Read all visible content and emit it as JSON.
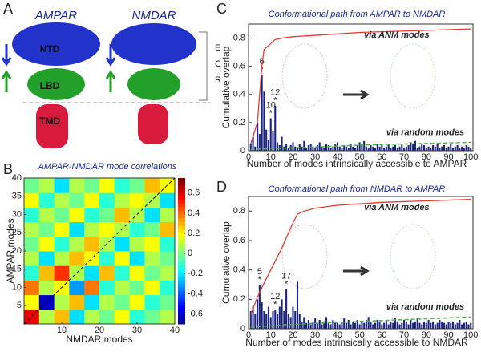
{
  "figure": {
    "panel_labels": [
      "A",
      "B",
      "C",
      "D"
    ],
    "proteins": [
      "AMPAR",
      "NMDAR"
    ],
    "domains": [
      "NTD",
      "LBD",
      "TMD"
    ],
    "ecr": [
      "E",
      "C",
      "R"
    ]
  },
  "chart_data": [
    {
      "type": "heatmap",
      "title": "AMPAR-NMDAR mode correlations",
      "xlabel": "NMDAR modes",
      "ylabel": "AMPAR modes",
      "xlim": [
        0,
        40
      ],
      "ylim": [
        0,
        40
      ],
      "xticks": [
        10,
        20,
        30,
        40
      ],
      "yticks": [
        5,
        10,
        15,
        20,
        25,
        30,
        35,
        40
      ],
      "clim": [
        -0.7,
        0.75
      ],
      "cticks": [
        0.6,
        0.4,
        0.2,
        0,
        -0.2,
        -0.4,
        -0.6
      ],
      "matrix": [
        [
          0.6,
          0.1,
          0.3,
          -0.2,
          0.1,
          0,
          0.2,
          -0.1,
          0,
          0.1
        ],
        [
          0.2,
          -0.6,
          0.1,
          0.3,
          -0.2,
          0.1,
          0,
          0.2,
          -0.1,
          0
        ],
        [
          0.4,
          0.1,
          0.2,
          -0.3,
          0.4,
          -0.1,
          0.1,
          0,
          0.2,
          -0.1
        ],
        [
          -0.1,
          0.3,
          0.5,
          0.1,
          -0.2,
          0.3,
          -0.1,
          0.2,
          0,
          0.1
        ],
        [
          0.1,
          -0.2,
          0.1,
          0.3,
          0.2,
          -0.1,
          0.2,
          -0.2,
          0.1,
          0
        ],
        [
          0,
          0.2,
          -0.1,
          0.1,
          0.3,
          0.1,
          -0.2,
          0.1,
          0.2,
          -0.1
        ],
        [
          0.1,
          0,
          0.2,
          -0.2,
          0.1,
          0.2,
          0.1,
          -0.1,
          0,
          0.3
        ],
        [
          -0.1,
          0.1,
          0,
          0.2,
          -0.1,
          0,
          0.3,
          0.1,
          -0.2,
          0.1
        ],
        [
          0.2,
          -0.1,
          0.1,
          0,
          0.2,
          -0.1,
          0.1,
          0.2,
          0.1,
          -0.2
        ],
        [
          0,
          0.1,
          -0.2,
          0.1,
          0,
          0.2,
          -0.1,
          0,
          0.3,
          0.2
        ]
      ]
    },
    {
      "type": "bar",
      "title": "Conformational path from AMPAR to NMDAR",
      "xlabel": "Number of modes intrinsically accessible to AMPAR",
      "ylabel": "Cumulative overlap",
      "xlim": [
        0,
        101
      ],
      "ylim": [
        0,
        0.9
      ],
      "xticks": [
        0,
        10,
        20,
        30,
        40,
        50,
        60,
        70,
        80,
        90,
        100
      ],
      "yticks": [
        0,
        0.2,
        0.4,
        0.6,
        0.8
      ],
      "color": "#1a237e",
      "x": [
        1,
        2,
        3,
        4,
        5,
        6,
        7,
        8,
        9,
        10,
        11,
        12,
        13,
        14,
        15,
        16,
        17,
        18,
        19,
        20,
        21,
        22,
        23,
        24,
        25,
        26,
        27,
        28,
        29,
        30,
        31,
        32,
        33,
        34,
        35,
        36,
        37,
        38,
        39,
        40,
        41,
        42,
        43,
        44,
        45,
        46,
        47,
        48,
        49,
        50,
        51,
        52,
        53,
        54,
        55,
        56,
        57,
        58,
        59,
        60,
        61,
        62,
        63,
        64,
        65,
        66,
        67,
        68,
        69,
        70,
        71,
        72,
        73,
        74,
        75,
        76,
        77,
        78,
        79,
        80,
        81,
        82,
        83,
        84,
        85,
        86,
        87,
        88,
        89,
        90,
        91,
        92,
        93,
        94,
        95,
        96,
        97,
        98,
        99,
        100
      ],
      "values": [
        0.05,
        0.1,
        0.03,
        0.2,
        0.12,
        0.54,
        0.42,
        0.15,
        0.08,
        0.23,
        0.14,
        0.32,
        0.06,
        0.04,
        0.1,
        0.03,
        0.05,
        0.02,
        0.04,
        0.06,
        0.03,
        0.02,
        0.05,
        0.03,
        0.07,
        0.02,
        0.04,
        0.05,
        0.03,
        0.02,
        0.04,
        0.06,
        0.03,
        0.02,
        0.05,
        0.04,
        0.02,
        0.03,
        0.05,
        0.06,
        0.03,
        0.02,
        0.04,
        0.03,
        0.02,
        0.05,
        0.03,
        0.02,
        0.04,
        0.06,
        0.05,
        0.07,
        0.03,
        0.02,
        0.04,
        0.03,
        0.02,
        0.05,
        0.03,
        0.04,
        0.02,
        0.03,
        0.05,
        0.02,
        0.03,
        0.04,
        0.02,
        0.03,
        0.05,
        0.02,
        0.03,
        0.04,
        0.06,
        0.05,
        0.07,
        0.02,
        0.03,
        0.05,
        0.04,
        0.02,
        0.03,
        0.02,
        0.04,
        0.03,
        0.05,
        0.02,
        0.03,
        0.04,
        0.02,
        0.03,
        0.05,
        0.02,
        0.03,
        0.04,
        0.02,
        0.03,
        0.02,
        0.04,
        0.03,
        0.02
      ],
      "highlighted_modes": [
        6,
        12,
        10
      ],
      "lines": [
        {
          "name": "via ANM modes",
          "color": "#e53935",
          "dashed": false,
          "x": [
            1,
            4,
            5,
            6,
            7,
            10,
            12,
            15,
            20,
            30,
            40,
            50,
            60,
            70,
            80,
            90,
            100
          ],
          "values": [
            0.05,
            0.2,
            0.4,
            0.6,
            0.72,
            0.76,
            0.79,
            0.8,
            0.81,
            0.82,
            0.83,
            0.84,
            0.845,
            0.85,
            0.855,
            0.86,
            0.865
          ]
        },
        {
          "name": "via random modes",
          "color": "#4caf50",
          "dashed": true,
          "x": [
            1,
            20,
            50,
            100
          ],
          "values": [
            0.01,
            0.02,
            0.04,
            0.06
          ]
        }
      ]
    },
    {
      "type": "bar",
      "title": "Conformational path from NMDAR to AMPAR",
      "xlabel": "Number of modes intrinsically accessible to NMDAR",
      "ylabel": "Cumulative overlap",
      "xlim": [
        0,
        101
      ],
      "ylim": [
        0,
        0.9
      ],
      "xticks": [
        0,
        10,
        20,
        30,
        40,
        50,
        60,
        70,
        80,
        90,
        100
      ],
      "yticks": [
        0,
        0.2,
        0.4,
        0.6,
        0.8
      ],
      "color": "#1a237e",
      "x": [
        1,
        2,
        3,
        4,
        5,
        6,
        7,
        8,
        9,
        10,
        11,
        12,
        13,
        14,
        15,
        16,
        17,
        18,
        19,
        20,
        21,
        22,
        23,
        24,
        25,
        26,
        27,
        28,
        29,
        30,
        31,
        32,
        33,
        34,
        35,
        36,
        37,
        38,
        39,
        40,
        41,
        42,
        43,
        44,
        45,
        46,
        47,
        48,
        49,
        50,
        51,
        52,
        53,
        54,
        55,
        56,
        57,
        58,
        59,
        60,
        61,
        62,
        63,
        64,
        65,
        66,
        67,
        68,
        69,
        70,
        71,
        72,
        73,
        74,
        75,
        76,
        77,
        78,
        79,
        80,
        81,
        82,
        83,
        84,
        85,
        86,
        87,
        88,
        89,
        90,
        91,
        92,
        93,
        94,
        95,
        96,
        97,
        98,
        99,
        100
      ],
      "values": [
        0.12,
        0.15,
        0.1,
        0.2,
        0.3,
        0.18,
        0.12,
        0.1,
        0.15,
        0.08,
        0.12,
        0.13,
        0.1,
        0.15,
        0.2,
        0.12,
        0.27,
        0.1,
        0.08,
        0.15,
        0.12,
        0.32,
        0.1,
        0.05,
        0.08,
        0.04,
        0.06,
        0.03,
        0.05,
        0.07,
        0.04,
        0.06,
        0.03,
        0.05,
        0.08,
        0.04,
        0.03,
        0.06,
        0.05,
        0.04,
        0.03,
        0.05,
        0.07,
        0.04,
        0.06,
        0.03,
        0.05,
        0.04,
        0.06,
        0.03,
        0.05,
        0.04,
        0.06,
        0.08,
        0.05,
        0.03,
        0.04,
        0.06,
        0.05,
        0.03,
        0.04,
        0.06,
        0.03,
        0.05,
        0.04,
        0.07,
        0.05,
        0.03,
        0.04,
        0.06,
        0.05,
        0.03,
        0.06,
        0.04,
        0.05,
        0.07,
        0.04,
        0.03,
        0.05,
        0.04,
        0.06,
        0.04,
        0.05,
        0.03,
        0.04,
        0.06,
        0.05,
        0.04,
        0.03,
        0.05,
        0.04,
        0.05,
        0.03,
        0.04,
        0.06,
        0.03,
        0.04,
        0.05,
        0.03,
        0.04
      ],
      "highlighted_modes": [
        5,
        12,
        17
      ],
      "lines": [
        {
          "name": "via ANM modes",
          "color": "#e53935",
          "dashed": false,
          "x": [
            1,
            5,
            10,
            15,
            17,
            20,
            22,
            25,
            30,
            40,
            50,
            60,
            70,
            80,
            90,
            100
          ],
          "values": [
            0.1,
            0.25,
            0.4,
            0.55,
            0.62,
            0.72,
            0.78,
            0.8,
            0.82,
            0.84,
            0.85,
            0.86,
            0.865,
            0.87,
            0.875,
            0.88
          ]
        },
        {
          "name": "via random modes",
          "color": "#4caf50",
          "dashed": true,
          "x": [
            1,
            20,
            50,
            100
          ],
          "values": [
            0.01,
            0.03,
            0.05,
            0.08
          ]
        }
      ]
    }
  ]
}
